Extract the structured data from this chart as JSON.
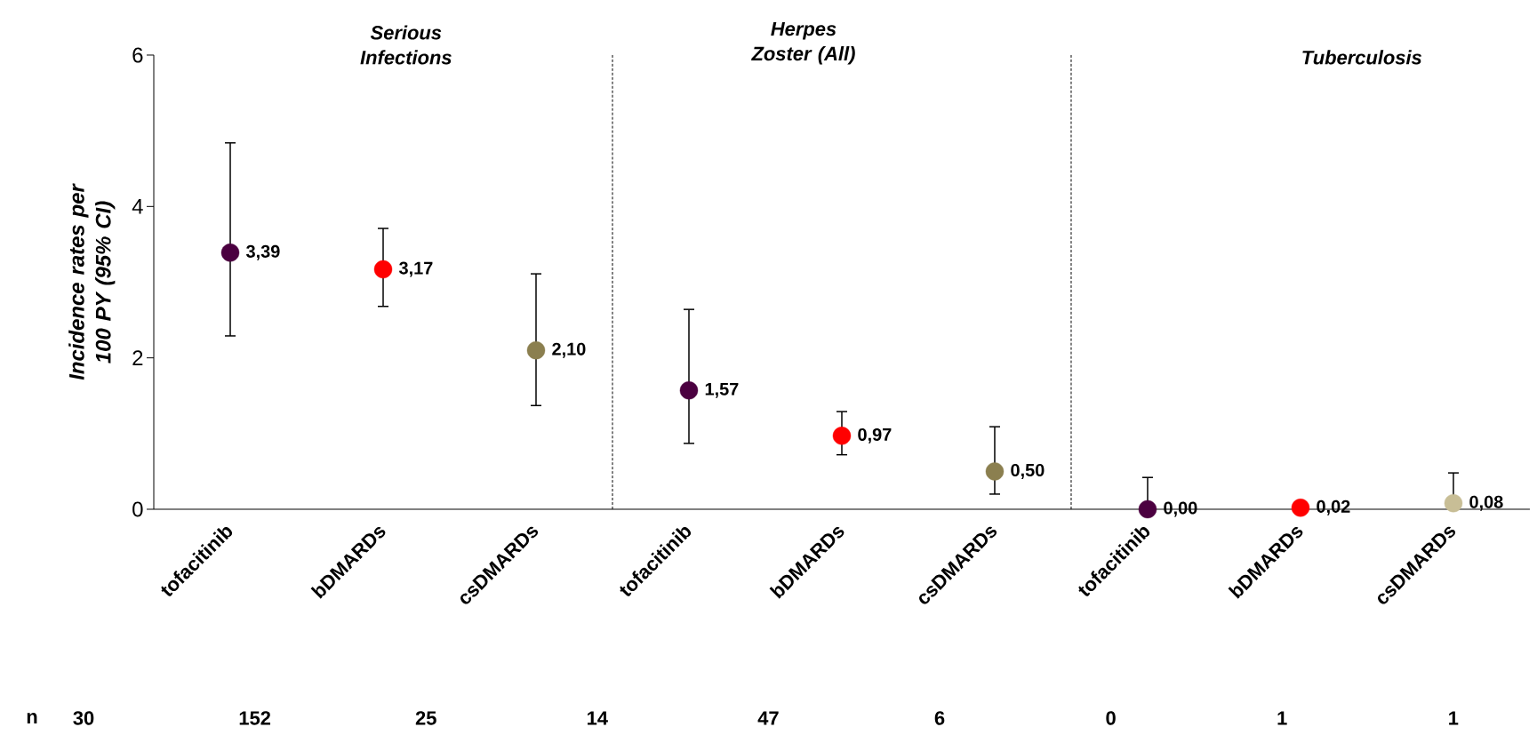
{
  "chart_data": {
    "type": "scatter",
    "ylabel": "Incidence rates per 100 PY (95% CI)",
    "categories": [
      "tofacitinib",
      "bDMARDs",
      "csDMARDs",
      "tofacitinib",
      "bDMARDs",
      "csDMARDs",
      "tofacitinib",
      "bDMARDs",
      "csDMARDs"
    ],
    "values": [
      3.39,
      3.17,
      2.1,
      1.57,
      0.97,
      0.5,
      0.0,
      0.02,
      0.08
    ],
    "colors": [
      "#4b0040",
      "#ff0000",
      "#8b7f4f",
      "#4b0040",
      "#ff0000",
      "#8b7f4f",
      "#4b0040",
      "#ff0000",
      "#c8be96"
    ],
    "errors": [
      [
        2.29,
        4.84
      ],
      [
        2.68,
        3.71
      ],
      [
        1.37,
        3.11
      ],
      [
        0.87,
        2.64
      ],
      [
        0.72,
        1.29
      ],
      [
        0.2,
        1.09
      ],
      [
        0.0,
        0.42
      ],
      null,
      [
        0.0,
        0.48
      ]
    ],
    "value_labels": [
      "3,39",
      "3,17",
      "2,10",
      "1,57",
      "0,97",
      "0,50",
      "0,00",
      "0,02",
      "0,08"
    ],
    "ylim": [
      0,
      6
    ],
    "yticks": [
      0,
      2,
      4,
      6
    ],
    "annotations": [
      "Serious Infections",
      "Herpes Zoster (All)",
      "Tuberculosis",
      "n",
      "30",
      "152",
      "25",
      "14",
      "47",
      "6",
      "0",
      "1",
      "1"
    ]
  }
}
